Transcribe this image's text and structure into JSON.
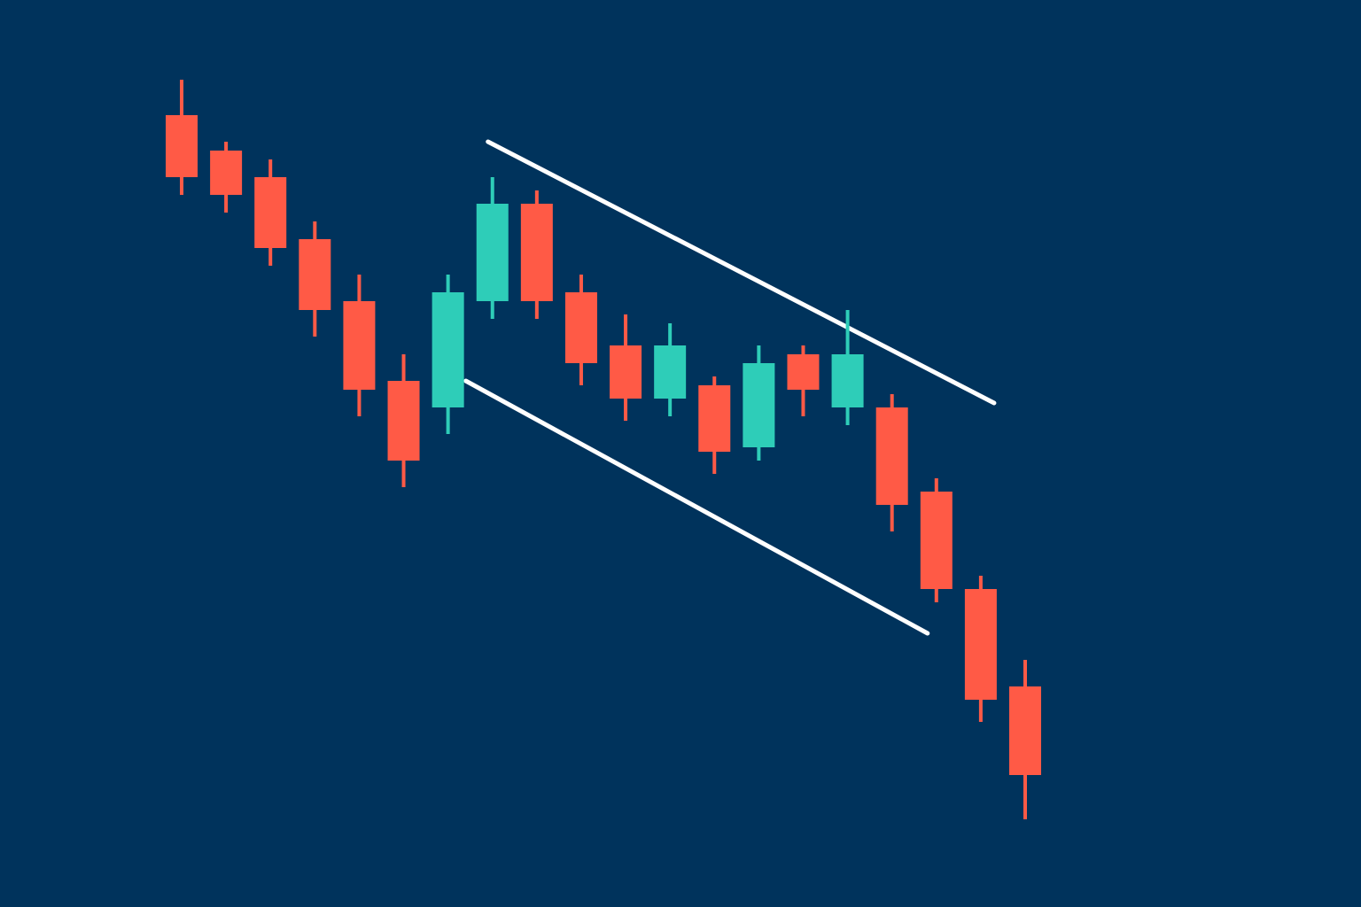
{
  "theme": {
    "background": "#00335c",
    "bullish_color": "#2ecdb8",
    "bearish_color": "#ff5a46",
    "channel_color": "#ffffff"
  },
  "chart_data": {
    "type": "candlestick",
    "title": "",
    "xlabel": "",
    "ylabel": "",
    "axes_visible": false,
    "grid": false,
    "legend": "none",
    "ylim": [
      0,
      100
    ],
    "candles": [
      {
        "o": 88.0,
        "h": 92.0,
        "l": 79.0,
        "c": 81.0,
        "dir": "bear"
      },
      {
        "o": 84.0,
        "h": 85.0,
        "l": 77.0,
        "c": 79.0,
        "dir": "bear"
      },
      {
        "o": 81.0,
        "h": 83.0,
        "l": 71.0,
        "c": 73.0,
        "dir": "bear"
      },
      {
        "o": 74.0,
        "h": 76.0,
        "l": 63.0,
        "c": 66.0,
        "dir": "bear"
      },
      {
        "o": 67.0,
        "h": 70.0,
        "l": 54.0,
        "c": 57.0,
        "dir": "bear"
      },
      {
        "o": 58.0,
        "h": 61.0,
        "l": 46.0,
        "c": 49.0,
        "dir": "bear"
      },
      {
        "o": 55.0,
        "h": 70.0,
        "l": 52.0,
        "c": 68.0,
        "dir": "bull"
      },
      {
        "o": 67.0,
        "h": 81.0,
        "l": 65.0,
        "c": 78.0,
        "dir": "bull"
      },
      {
        "o": 78.0,
        "h": 79.5,
        "l": 65.0,
        "c": 67.0,
        "dir": "bear"
      },
      {
        "o": 68.0,
        "h": 70.0,
        "l": 57.5,
        "c": 60.0,
        "dir": "bear"
      },
      {
        "o": 62.0,
        "h": 65.5,
        "l": 53.5,
        "c": 56.0,
        "dir": "bear"
      },
      {
        "o": 56.0,
        "h": 64.5,
        "l": 54.0,
        "c": 62.0,
        "dir": "bull"
      },
      {
        "o": 57.5,
        "h": 58.5,
        "l": 47.5,
        "c": 50.0,
        "dir": "bear"
      },
      {
        "o": 50.5,
        "h": 62.0,
        "l": 49.0,
        "c": 60.0,
        "dir": "bull"
      },
      {
        "o": 61.0,
        "h": 62.0,
        "l": 54.0,
        "c": 57.0,
        "dir": "bear"
      },
      {
        "o": 55.0,
        "h": 66.0,
        "l": 53.0,
        "c": 61.0,
        "dir": "bull"
      },
      {
        "o": 55.0,
        "h": 56.5,
        "l": 41.0,
        "c": 44.0,
        "dir": "bear"
      },
      {
        "o": 45.5,
        "h": 47.0,
        "l": 33.0,
        "c": 34.5,
        "dir": "bear"
      },
      {
        "o": 34.5,
        "h": 36.0,
        "l": 19.5,
        "c": 22.0,
        "dir": "bear"
      },
      {
        "o": 23.5,
        "h": 26.5,
        "l": 8.5,
        "c": 13.5,
        "dir": "bear"
      }
    ],
    "channel_lines": [
      {
        "name": "upper",
        "from": {
          "x": 6.9,
          "y": 85.0
        },
        "to": {
          "x": 18.3,
          "y": 55.5
        }
      },
      {
        "name": "lower",
        "from": {
          "x": 6.4,
          "y": 58.0
        },
        "to": {
          "x": 16.8,
          "y": 29.5
        }
      }
    ]
  }
}
